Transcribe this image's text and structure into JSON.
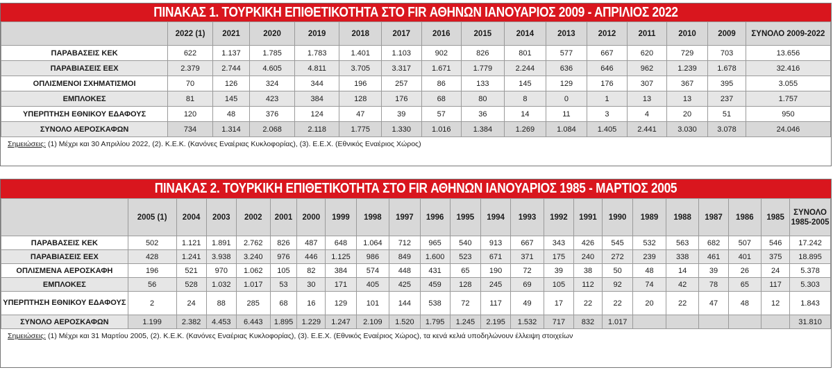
{
  "table1": {
    "title": "ΠΙΝΑΚΑΣ 1. ΤΟΥΡΚΙΚΗ ΕΠΙΘΕΤΙΚΟΤΗΤΑ ΣΤΟ FIR ΑΘΗΝΩΝ  ΙΑΝΟΥΑΡΙΟΣ 2009 - ΑΠΡΙΛΙΟΣ 2022",
    "columns": [
      "2022 (1)",
      "2021",
      "2020",
      "2019",
      "2018",
      "2017",
      "2016",
      "2015",
      "2014",
      "2013",
      "2012",
      "2011",
      "2010",
      "2009",
      "ΣΥΝΟΛΟ 2009-2022"
    ],
    "rows": [
      {
        "label": "ΠΑΡΑΒΑΣΕΙΣ ΚΕΚ",
        "values": [
          "622",
          "1.137",
          "1.785",
          "1.783",
          "1.401",
          "1.103",
          "902",
          "826",
          "801",
          "577",
          "667",
          "620",
          "729",
          "703",
          "13.656"
        ]
      },
      {
        "label": "ΠΑΡΑΒΙΑΣΕΙΣ ΕΕΧ",
        "values": [
          "2.379",
          "2.744",
          "4.605",
          "4.811",
          "3.705",
          "3.317",
          "1.671",
          "1.779",
          "2.244",
          "636",
          "646",
          "962",
          "1.239",
          "1.678",
          "32.416"
        ]
      },
      {
        "label": "ΟΠΛΙΣΜΕΝΟΙ ΣΧΗΜΑΤΙΣΜΟΙ",
        "values": [
          "70",
          "126",
          "324",
          "344",
          "196",
          "257",
          "86",
          "133",
          "145",
          "129",
          "176",
          "307",
          "367",
          "395",
          "3.055"
        ]
      },
      {
        "label": "ΕΜΠΛΟΚΕΣ",
        "values": [
          "81",
          "145",
          "423",
          "384",
          "128",
          "176",
          "68",
          "80",
          "8",
          "0",
          "1",
          "13",
          "13",
          "237",
          "1.757"
        ]
      },
      {
        "label": "ΥΠΕΡΠΤΗΣΗ ΕΘΝΙΚΟΥ ΕΔΑΦΟΥΣ",
        "values": [
          "120",
          "48",
          "376",
          "124",
          "47",
          "39",
          "57",
          "36",
          "14",
          "11",
          "3",
          "4",
          "20",
          "51",
          "950"
        ]
      },
      {
        "label": "ΣΥΝΟΛΟ ΑΕΡΟΣΚΑΦΩΝ",
        "values": [
          "734",
          "1.314",
          "2.068",
          "2.118",
          "1.775",
          "1.330",
          "1.016",
          "1.384",
          "1.269",
          "1.084",
          "1.405",
          "2.441",
          "3.030",
          "3.078",
          "24.046"
        ]
      }
    ],
    "note_label": "Σημειώσεις:",
    "note_text": " (1) Μέχρι και 30 Απριλίου 2022, (2). Κ.Ε.Κ. (Κανόνες Εναέριας Κυκλοφορίας), (3). Ε.Ε.Χ. (Εθνικός Εναέριος Χώρος)"
  },
  "table2": {
    "title": "ΠΙΝΑΚΑΣ 2. ΤΟΥΡΚΙΚΗ ΕΠΙΘΕΤΙΚΟΤΗΤΑ ΣΤΟ FIR ΑΘΗΝΩΝ  ΙΑΝΟΥΑΡΙΟΣ 1985 - ΜΑΡΤΙΟΣ 2005",
    "columns": [
      "2005 (1)",
      "2004",
      "2003",
      "2002",
      "2001",
      "2000",
      "1999",
      "1998",
      "1997",
      "1996",
      "1995",
      "1994",
      "1993",
      "1992",
      "1991",
      "1990",
      "1989",
      "1988",
      "1987",
      "1986",
      "1985",
      "ΣΥΝΟΛΟ 1985-2005"
    ],
    "rows": [
      {
        "label": "ΠΑΡΑΒΑΣΕΙΣ ΚΕΚ",
        "values": [
          "502",
          "1.121",
          "1.891",
          "2.762",
          "826",
          "487",
          "648",
          "1.064",
          "712",
          "965",
          "540",
          "913",
          "667",
          "343",
          "426",
          "545",
          "532",
          "563",
          "682",
          "507",
          "546",
          "17.242"
        ]
      },
      {
        "label": "ΠΑΡΑΒΙΑΣΕΙΣ ΕΕΧ",
        "values": [
          "428",
          "1.241",
          "3.938",
          "3.240",
          "976",
          "446",
          "1.125",
          "986",
          "849",
          "1.600",
          "523",
          "671",
          "371",
          "175",
          "240",
          "272",
          "239",
          "338",
          "461",
          "401",
          "375",
          "18.895"
        ]
      },
      {
        "label": "ΟΠΛΙΣΜΕΝΑ ΑΕΡΟΣΚΑΦΗ",
        "values": [
          "196",
          "521",
          "970",
          "1.062",
          "105",
          "82",
          "384",
          "574",
          "448",
          "431",
          "65",
          "190",
          "72",
          "39",
          "38",
          "50",
          "48",
          "14",
          "39",
          "26",
          "24",
          "5.378"
        ]
      },
      {
        "label": "ΕΜΠΛΟΚΕΣ",
        "values": [
          "56",
          "528",
          "1.032",
          "1.017",
          "53",
          "30",
          "171",
          "405",
          "425",
          "459",
          "128",
          "245",
          "69",
          "105",
          "112",
          "92",
          "74",
          "42",
          "78",
          "65",
          "117",
          "5.303"
        ]
      },
      {
        "label": "ΥΠΕΡΠΤΗΣΗ ΕΘΝΙΚΟΥ ΕΔΑΦΟΥΣ",
        "values": [
          "2",
          "24",
          "88",
          "285",
          "68",
          "16",
          "129",
          "101",
          "144",
          "538",
          "72",
          "117",
          "49",
          "17",
          "22",
          "22",
          "20",
          "22",
          "47",
          "48",
          "12",
          "1.843"
        ]
      },
      {
        "label": "ΣΥΝΟΛΟ ΑΕΡΟΣΚΑΦΩΝ",
        "values": [
          "1.199",
          "2.382",
          "4.453",
          "6.443",
          "1.895",
          "1.229",
          "1.247",
          "2.109",
          "1.520",
          "1.795",
          "1.245",
          "2.195",
          "1.532",
          "717",
          "832",
          "1.017",
          "",
          "",
          "",
          "",
          "",
          "31.810"
        ]
      }
    ],
    "note_label": "Σημειώσεις:",
    "note_text": " (1) Μέχρι και 31 Μαρτίου 2005, (2). Κ.Ε.Κ. (Κανόνες Εναέριας Κυκλοφορίας), (3). Ε.Ε.Χ. (Εθνικός Εναέριος Χώρος), τα κενά κελιά υποδηλώνουν έλλειψη στοιχείων"
  }
}
